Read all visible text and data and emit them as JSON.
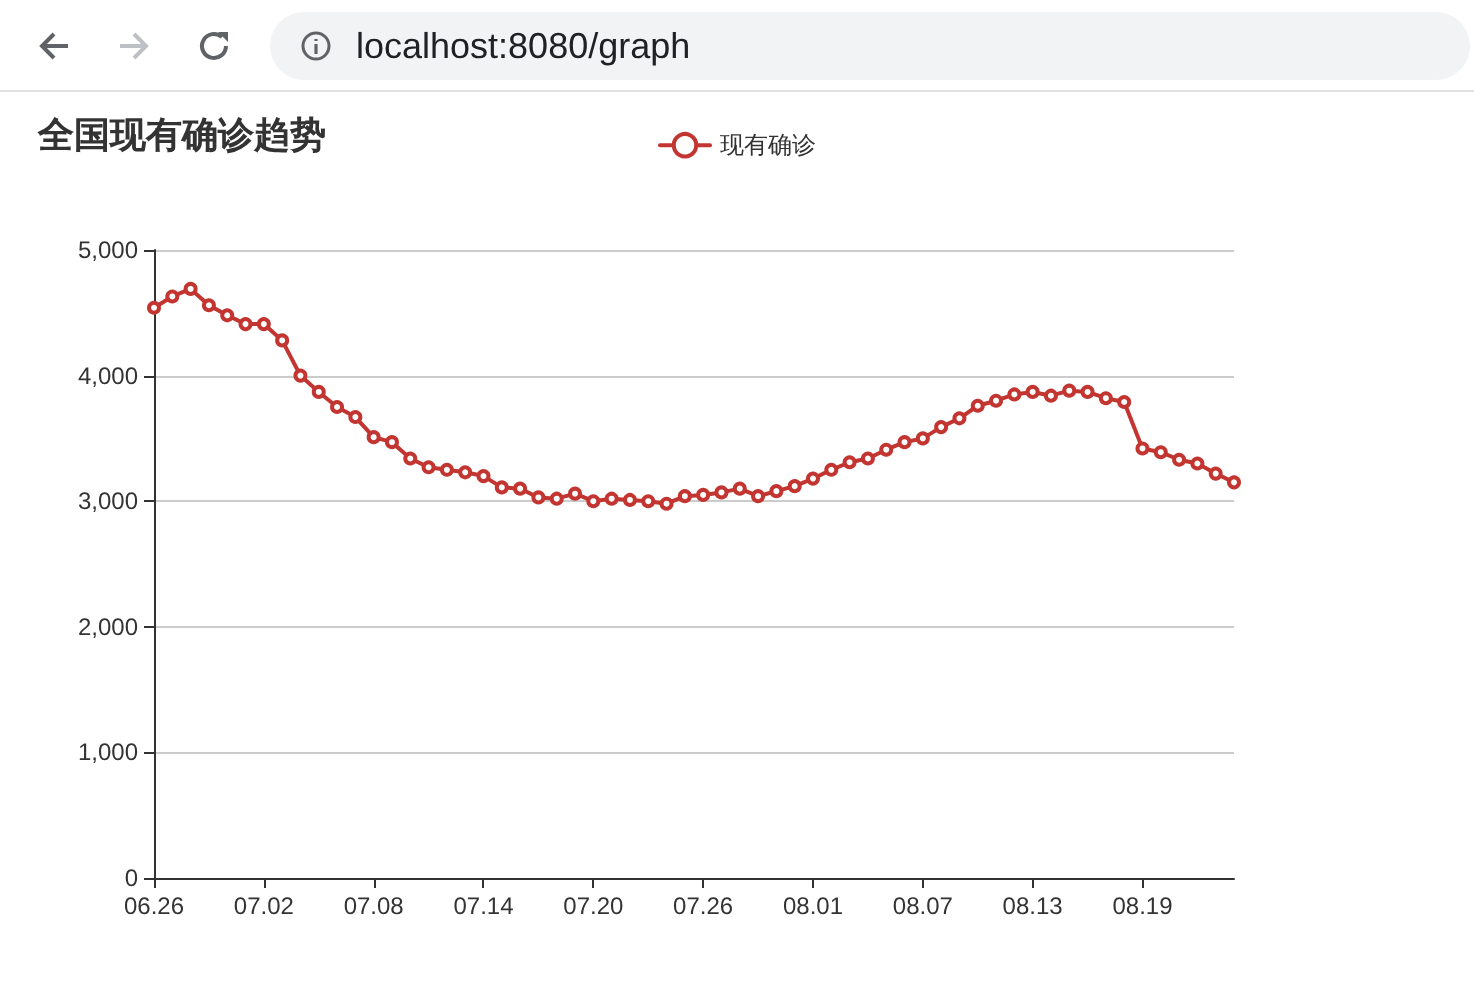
{
  "chart_data": {
    "type": "line",
    "title": "全国现有确诊趋势",
    "annotations": [
      "localhost:8080/graph"
    ],
    "categories": [
      "06.26",
      null,
      null,
      null,
      null,
      null,
      "07.02",
      null,
      null,
      null,
      null,
      null,
      "07.08",
      null,
      null,
      null,
      null,
      null,
      "07.14",
      null,
      null,
      null,
      null,
      null,
      "07.20",
      null,
      null,
      null,
      null,
      null,
      "07.26",
      null,
      null,
      null,
      null,
      null,
      "08.01",
      null,
      null,
      null,
      null,
      null,
      "08.07",
      null,
      null,
      null,
      null,
      null,
      "08.13",
      null,
      null,
      null,
      null,
      null,
      "08.19",
      null,
      null,
      null,
      null,
      null
    ],
    "series": [
      {
        "name": "现有确诊",
        "color": "#c23531",
        "values": [
          4540,
          4630,
          4690,
          4560,
          4480,
          4410,
          4410,
          4280,
          4000,
          3870,
          3750,
          3670,
          3510,
          3470,
          3340,
          3270,
          3250,
          3230,
          3200,
          3110,
          3100,
          3030,
          3020,
          3060,
          3000,
          3020,
          3010,
          3000,
          2980,
          3040,
          3050,
          3070,
          3100,
          3040,
          3080,
          3120,
          3180,
          3250,
          3310,
          3340,
          3410,
          3470,
          3500,
          3590,
          3660,
          3760,
          3800,
          3850,
          3870,
          3840,
          3880,
          3870,
          3820,
          3790,
          3420,
          3390,
          3330,
          3300,
          3220,
          3150
        ]
      }
    ],
    "ylim": [
      0,
      5000
    ],
    "yticks": [
      0,
      {
        "value": 1000,
        "label": "1,000"
      },
      {
        "value": 2000,
        "label": "2,000"
      },
      {
        "value": 3000,
        "label": "3,000"
      },
      {
        "value": 4000,
        "label": "4,000"
      },
      {
        "value": 5000,
        "label": "5,000"
      }
    ],
    "grid": "y",
    "legend": "top",
    "marker": "circle",
    "line_style": "solid"
  }
}
